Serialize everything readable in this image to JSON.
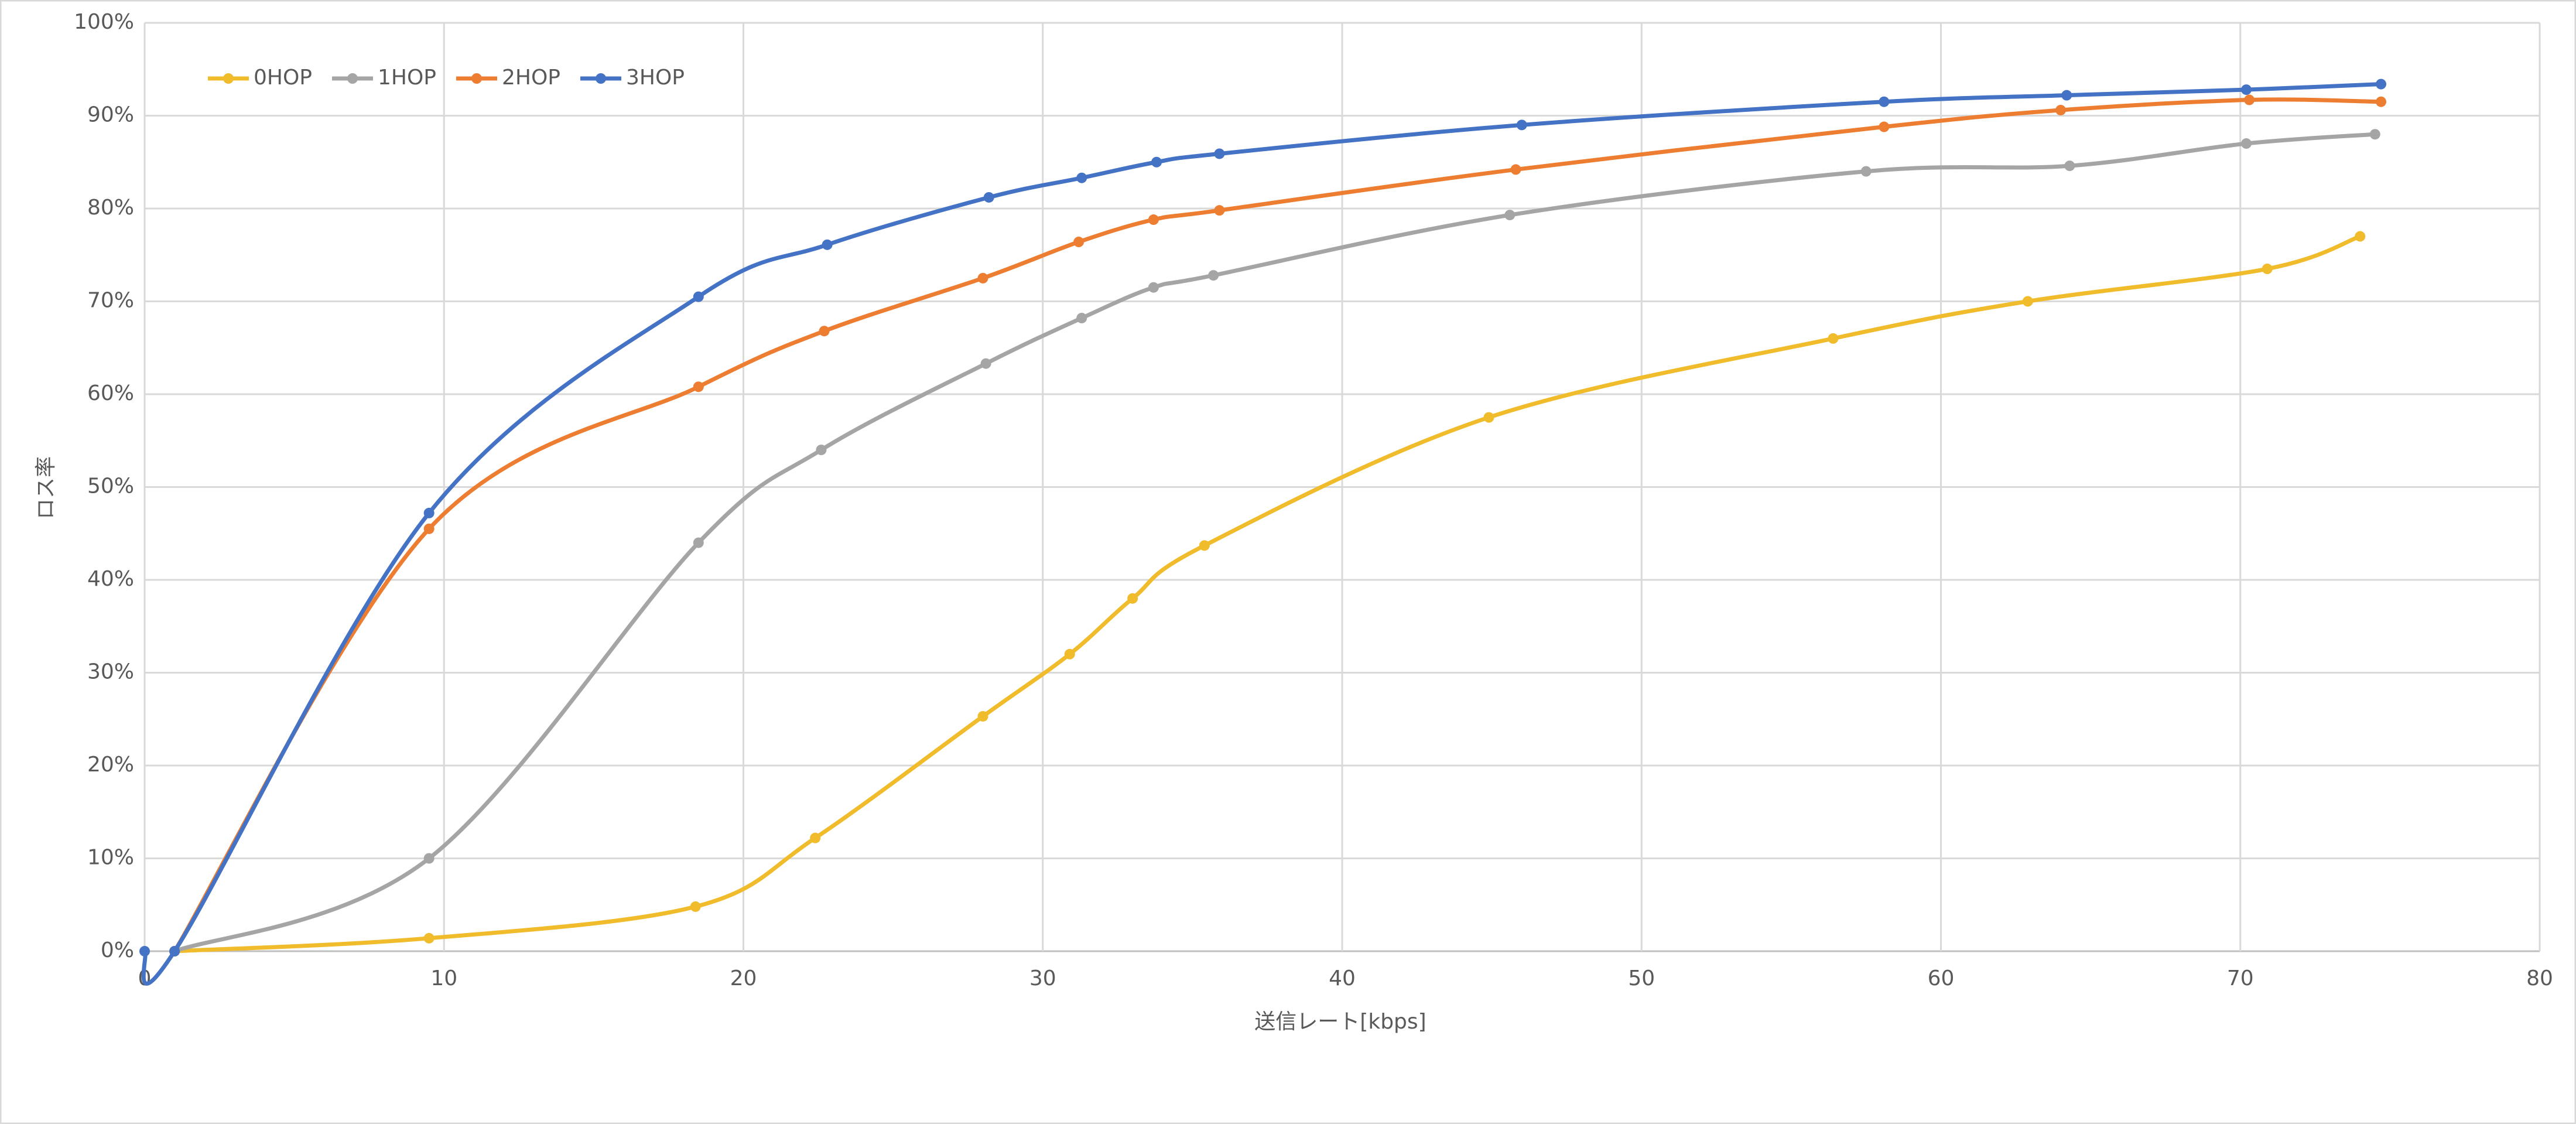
{
  "chart_data": {
    "type": "line",
    "xlabel": "送信レート[kbps]",
    "ylabel": "ロス率",
    "xlim": [
      0,
      80
    ],
    "xticks": [
      0,
      10,
      20,
      30,
      40,
      50,
      60,
      70,
      80
    ],
    "ylim": [
      0,
      100
    ],
    "yticks": [
      {
        "value": 0,
        "label": "0%"
      },
      {
        "value": 10,
        "label": "10%"
      },
      {
        "value": 20,
        "label": "20%"
      },
      {
        "value": 30,
        "label": "30%"
      },
      {
        "value": 40,
        "label": "40%"
      },
      {
        "value": 50,
        "label": "50%"
      },
      {
        "value": 60,
        "label": "60%"
      },
      {
        "value": 70,
        "label": "70%"
      },
      {
        "value": 80,
        "label": "80%"
      },
      {
        "value": 90,
        "label": "90%"
      },
      {
        "value": 100,
        "label": "100%"
      }
    ],
    "grid": true,
    "legend": "top-left",
    "smooth": true,
    "series": [
      {
        "name": "0HOP",
        "color": "#f0bc2c",
        "x": [
          1,
          9.5,
          18.4,
          22.4,
          28,
          30.9,
          33,
          35.4,
          44.9,
          56.4,
          62.9,
          70.9,
          74
        ],
        "values": [
          0,
          1.4,
          4.8,
          12.2,
          25.3,
          32,
          38,
          43.7,
          57.5,
          66,
          70,
          73.5,
          77
        ]
      },
      {
        "name": "1HOP",
        "color": "#a5a5a5",
        "x": [
          1,
          9.5,
          18.5,
          22.6,
          28.1,
          31.3,
          33.7,
          35.7,
          45.6,
          57.5,
          64.3,
          70.2,
          74.5
        ],
        "values": [
          0,
          10,
          44,
          54,
          63.3,
          68.2,
          71.5,
          72.8,
          79.3,
          84,
          84.6,
          87,
          88
        ]
      },
      {
        "name": "2HOP",
        "color": "#ed7d31",
        "x": [
          1,
          9.5,
          18.5,
          22.7,
          28,
          31.2,
          33.7,
          35.9,
          45.8,
          58.1,
          64,
          70.3,
          74.7
        ],
        "values": [
          0,
          45.5,
          60.8,
          66.8,
          72.5,
          76.4,
          78.8,
          79.8,
          84.2,
          88.8,
          90.6,
          91.7,
          91.5
        ]
      },
      {
        "name": "3HOP",
        "color": "#4472c4",
        "x": [
          0,
          1,
          9.5,
          18.5,
          22.8,
          28.2,
          31.3,
          33.8,
          35.9,
          46,
          58.1,
          64.2,
          70.2,
          74.7
        ],
        "values": [
          0,
          0,
          47.2,
          70.5,
          76.1,
          81.2,
          83.3,
          85,
          85.9,
          89,
          91.5,
          92.2,
          92.8,
          93.4
        ]
      }
    ]
  }
}
